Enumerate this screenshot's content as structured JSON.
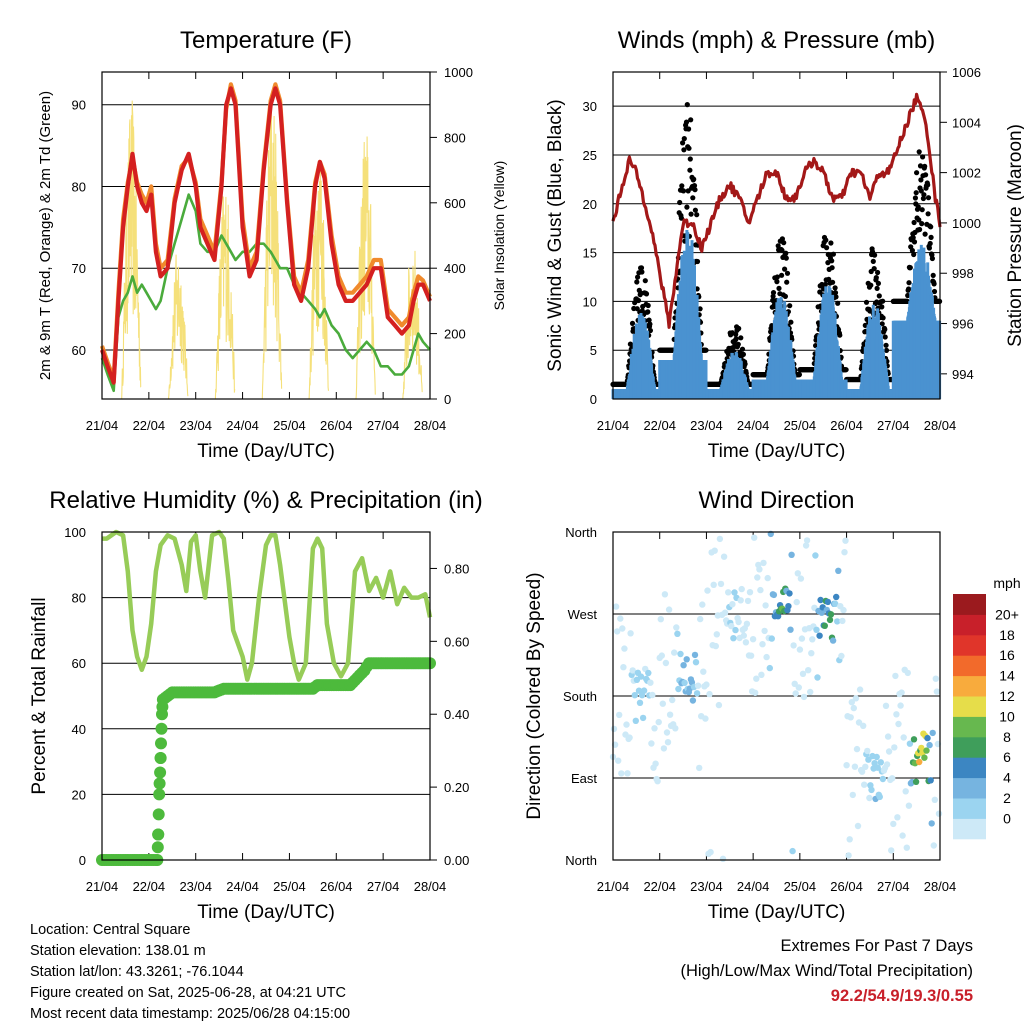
{
  "colors": {
    "temp_2m": "#d42020",
    "temp_9m": "#f08a2c",
    "dewpoint": "#4aab3c",
    "solar": "#f5e07a",
    "wind": "#4a92d0",
    "gust": "#000000",
    "pressure": "#a31818",
    "rh": "#97cc58",
    "precip": "#4dba3c",
    "extremes_text": "#c8202a",
    "speed_scale": [
      "#cde9f7",
      "#9bd4f0",
      "#76b4e0",
      "#3c86c2",
      "#3f9e5b",
      "#67b84f",
      "#e6dd4a",
      "#f8ab3d",
      "#f26a2b",
      "#e0352a",
      "#c8202a",
      "#9b1a1e"
    ]
  },
  "time_ticks": [
    "21/04",
    "22/04",
    "23/04",
    "24/04",
    "25/04",
    "26/04",
    "27/04",
    "28/04"
  ],
  "chart_data": [
    {
      "id": "temperature",
      "type": "line",
      "title": "Temperature (F)",
      "xlabel": "Time (Day/UTC)",
      "ylabel": "2m & 9m T (Red, Orange) & 2m Td (Green)",
      "ylabel_right": "Solar Insolation (Yellow)",
      "xlim": [
        0,
        7
      ],
      "ylim": [
        54,
        94
      ],
      "ylim_right": [
        0,
        1000
      ],
      "yticks": [
        60,
        70,
        80,
        90
      ],
      "yticks_right": [
        0,
        200,
        400,
        600,
        800,
        1000
      ],
      "grid": true,
      "series": [
        {
          "name": "2m T",
          "color": "#d42020",
          "x": [
            0,
            0.12,
            0.25,
            0.35,
            0.45,
            0.55,
            0.65,
            0.75,
            0.85,
            0.95,
            1.05,
            1.15,
            1.25,
            1.4,
            1.55,
            1.7,
            1.85,
            2.0,
            2.1,
            2.25,
            2.4,
            2.55,
            2.65,
            2.75,
            2.85,
            3.0,
            3.15,
            3.3,
            3.45,
            3.6,
            3.7,
            3.8,
            3.95,
            4.1,
            4.25,
            4.4,
            4.55,
            4.65,
            4.75,
            4.9,
            5.05,
            5.2,
            5.35,
            5.5,
            5.65,
            5.8,
            5.95,
            6.1,
            6.25,
            6.4,
            6.55,
            6.65,
            6.75,
            6.85,
            7.0
          ],
          "y": [
            60,
            58,
            56,
            66,
            75,
            80,
            84,
            80,
            78,
            77,
            79,
            72,
            69,
            70,
            78,
            82,
            84,
            80,
            75,
            73,
            71,
            80,
            90,
            92,
            90,
            75,
            69,
            71,
            82,
            90,
            92,
            90,
            78,
            68,
            66,
            70,
            80,
            83,
            81,
            73,
            68,
            66,
            66,
            67,
            68,
            70,
            70,
            64,
            63,
            62,
            63,
            66,
            68,
            68,
            66
          ]
        },
        {
          "name": "9m T",
          "color": "#f08a2c",
          "x": [
            0,
            0.12,
            0.25,
            0.35,
            0.45,
            0.55,
            0.65,
            0.75,
            0.85,
            0.95,
            1.05,
            1.15,
            1.25,
            1.4,
            1.55,
            1.7,
            1.85,
            2.0,
            2.1,
            2.25,
            2.4,
            2.55,
            2.65,
            2.75,
            2.85,
            3.0,
            3.15,
            3.3,
            3.45,
            3.6,
            3.7,
            3.8,
            3.95,
            4.1,
            4.25,
            4.4,
            4.55,
            4.65,
            4.75,
            4.9,
            5.05,
            5.2,
            5.35,
            5.5,
            5.65,
            5.8,
            5.95,
            6.1,
            6.25,
            6.4,
            6.55,
            6.65,
            6.75,
            6.85,
            7.0
          ],
          "y": [
            60.5,
            58.5,
            56.5,
            67,
            76,
            80.5,
            83.5,
            80.5,
            79,
            78,
            80,
            73,
            70,
            71,
            78.5,
            82.5,
            83.5,
            80.5,
            76,
            74,
            72,
            80.5,
            89.5,
            92.5,
            90.5,
            76,
            70,
            72,
            82.5,
            90.5,
            92.5,
            90.5,
            78.5,
            69,
            67,
            71,
            80.5,
            83,
            81.5,
            74,
            69,
            67,
            67,
            68,
            69,
            71,
            71,
            65,
            64,
            63,
            64,
            67,
            69,
            68.5,
            66.5
          ]
        },
        {
          "name": "2m Td",
          "color": "#4aab3c",
          "x": [
            0,
            0.12,
            0.25,
            0.35,
            0.45,
            0.55,
            0.65,
            0.75,
            0.85,
            0.95,
            1.05,
            1.15,
            1.25,
            1.4,
            1.55,
            1.7,
            1.85,
            2.0,
            2.1,
            2.25,
            2.4,
            2.55,
            2.65,
            2.75,
            2.85,
            3.0,
            3.15,
            3.3,
            3.45,
            3.6,
            3.7,
            3.8,
            3.95,
            4.1,
            4.25,
            4.4,
            4.55,
            4.65,
            4.75,
            4.9,
            5.05,
            5.2,
            5.35,
            5.5,
            5.65,
            5.8,
            5.95,
            6.1,
            6.25,
            6.4,
            6.55,
            6.65,
            6.75,
            6.85,
            7.0
          ],
          "y": [
            59,
            57,
            55,
            64,
            66,
            67,
            69,
            67,
            68,
            67,
            66,
            65,
            66,
            70,
            73,
            76,
            79,
            77,
            73,
            72,
            72,
            74,
            73,
            72,
            71,
            72,
            72,
            73,
            73,
            72,
            71,
            70,
            70,
            68,
            67,
            66,
            65,
            64,
            65,
            63,
            62,
            60,
            59,
            60,
            61,
            60,
            58,
            58,
            57,
            57,
            58,
            60,
            62,
            61,
            60
          ]
        },
        {
          "name": "Solar Insolation",
          "color": "#f5e07a",
          "axis": "right",
          "days": [
            0,
            1,
            2,
            3,
            4,
            5,
            6
          ],
          "daily_peak": [
            930,
            480,
            700,
            990,
            830,
            860,
            500
          ]
        }
      ]
    },
    {
      "id": "winds",
      "type": "scatter",
      "title": "Winds (mph) & Pressure (mb)",
      "xlabel": "Time (Day/UTC)",
      "ylabel": "Sonic Wind & Gust (Blue, Black)",
      "ylabel_right": "Station Pressure (Maroon)",
      "xlim": [
        0,
        7
      ],
      "ylim": [
        0,
        33.5
      ],
      "ylim_right": [
        993,
        1006
      ],
      "yticks": [
        0,
        5,
        10,
        15,
        20,
        25,
        30
      ],
      "yticks_right": [
        994,
        996,
        998,
        1000,
        1002,
        1004,
        1006
      ],
      "grid": true,
      "series": [
        {
          "name": "Sonic Wind",
          "color": "#4a92d0",
          "daily_peak": [
            9,
            18,
            5,
            11,
            12,
            10,
            16
          ],
          "daily_low": [
            1,
            4,
            1,
            2,
            2,
            1,
            8
          ]
        },
        {
          "name": "Gust",
          "color": "#000000",
          "daily_peak": [
            14,
            31,
            8,
            17,
            18,
            16,
            26
          ],
          "daily_low": [
            1,
            5,
            1,
            2,
            3,
            2,
            10
          ]
        },
        {
          "name": "Station Pressure",
          "color": "#a31818",
          "axis": "right",
          "x": [
            0,
            0.2,
            0.35,
            0.5,
            0.65,
            0.8,
            0.9,
            1.0,
            1.1,
            1.2,
            1.35,
            1.5,
            1.7,
            1.9,
            2.1,
            2.3,
            2.5,
            2.7,
            2.9,
            3.1,
            3.3,
            3.5,
            3.7,
            3.9,
            4.1,
            4.3,
            4.5,
            4.7,
            4.9,
            5.1,
            5.3,
            5.5,
            5.7,
            5.9,
            6.1,
            6.3,
            6.5,
            6.7,
            6.9,
            7.0
          ],
          "y": [
            1000,
            1001.5,
            1002.5,
            1002,
            1001,
            1000,
            999,
            998,
            997,
            996,
            998,
            1000,
            1000,
            999,
            1000,
            1001,
            1001.5,
            1001,
            1000,
            1001,
            1002,
            1002,
            1001,
            1001,
            1002,
            1002.5,
            1002,
            1001,
            1001,
            1002,
            1002,
            1001,
            1002,
            1002,
            1003,
            1004,
            1005,
            1004,
            1001,
            1000
          ]
        }
      ]
    },
    {
      "id": "humidity",
      "type": "line",
      "title": "Relative Humidity (%) & Precipitation (in)",
      "xlabel": "Time (Day/UTC)",
      "ylabel": "Percent & Total Rainfall",
      "xlim": [
        0,
        7
      ],
      "ylim": [
        0,
        100
      ],
      "ylim_right": [
        0,
        0.9
      ],
      "yticks": [
        0,
        20,
        40,
        60,
        80,
        100
      ],
      "yticks_right": [
        "0.00",
        "0.20",
        "0.40",
        "0.60",
        "0.80"
      ],
      "grid": true,
      "series": [
        {
          "name": "Relative Humidity",
          "color": "#97cc58",
          "x": [
            0,
            0.1,
            0.3,
            0.45,
            0.55,
            0.65,
            0.75,
            0.85,
            0.95,
            1.05,
            1.15,
            1.25,
            1.4,
            1.55,
            1.7,
            1.8,
            1.9,
            2.0,
            2.1,
            2.2,
            2.35,
            2.5,
            2.6,
            2.7,
            2.8,
            3.0,
            3.1,
            3.2,
            3.35,
            3.5,
            3.6,
            3.7,
            3.8,
            4.0,
            4.1,
            4.2,
            4.35,
            4.5,
            4.6,
            4.7,
            4.8,
            4.95,
            5.1,
            5.25,
            5.4,
            5.55,
            5.7,
            5.85,
            6.0,
            6.15,
            6.3,
            6.45,
            6.6,
            6.75,
            6.9,
            7.0
          ],
          "y": [
            98,
            98,
            100,
            99,
            88,
            70,
            62,
            58,
            62,
            72,
            88,
            96,
            99,
            98,
            90,
            82,
            97,
            99,
            88,
            80,
            99,
            100,
            98,
            85,
            70,
            62,
            55,
            60,
            80,
            96,
            99,
            99,
            90,
            68,
            60,
            55,
            60,
            95,
            98,
            95,
            72,
            60,
            56,
            60,
            88,
            92,
            82,
            86,
            80,
            88,
            78,
            83,
            80,
            80,
            81,
            74
          ]
        },
        {
          "name": "Total Precipitation",
          "color": "#4dba3c",
          "axis": "right",
          "x": [
            0,
            0.3,
            0.6,
            0.95,
            1.18,
            1.2,
            1.22,
            1.24,
            1.26,
            1.28,
            1.3,
            1.5,
            2.0,
            2.4,
            2.6,
            3.0,
            3.5,
            4.0,
            4.3,
            4.5,
            4.6,
            5.0,
            5.3,
            5.6,
            5.7,
            6.0,
            6.5,
            7.0
          ],
          "y": [
            0.0,
            0.0,
            0.0,
            0.0,
            0.0,
            0.07,
            0.18,
            0.24,
            0.32,
            0.4,
            0.44,
            0.46,
            0.46,
            0.46,
            0.47,
            0.47,
            0.47,
            0.47,
            0.47,
            0.47,
            0.48,
            0.48,
            0.48,
            0.52,
            0.54,
            0.54,
            0.54,
            0.54
          ]
        }
      ]
    },
    {
      "id": "direction",
      "type": "scatter",
      "title": "Wind Direction",
      "xlabel": "Time (Day/UTC)",
      "ylabel": "Direction (Colored By Speed)",
      "xlim": [
        0,
        7
      ],
      "ylim": [
        0,
        360
      ],
      "yticks": [
        "North",
        "East",
        "South",
        "West",
        "North"
      ],
      "grid": true,
      "legend": {
        "title": "mph",
        "labels": [
          "0",
          "2",
          "4",
          "6",
          "8",
          "10",
          "12",
          "14",
          "16",
          "18",
          "20+"
        ],
        "placement": "right"
      },
      "daily_direction": [
        180,
        200,
        270,
        270,
        270,
        90,
        110
      ],
      "daily_speed": [
        3,
        5,
        2,
        9,
        9,
        3,
        12
      ]
    }
  ],
  "info": {
    "location": "Location: Central Square",
    "elevation": "Station elevation: 138.01 m",
    "latlon": "Station lat/lon: 43.3261; -76.1044",
    "created": "Figure created on Sat, 2025-06-28, at 04:21 UTC",
    "recent": "Most recent data timestamp: 2025/06/28 04:15:00"
  },
  "extremes": {
    "title": "Extremes For Past 7 Days",
    "subtitle": "(High/Low/Max Wind/Total Precipitation)",
    "values": "92.2/54.9/19.3/0.55"
  }
}
